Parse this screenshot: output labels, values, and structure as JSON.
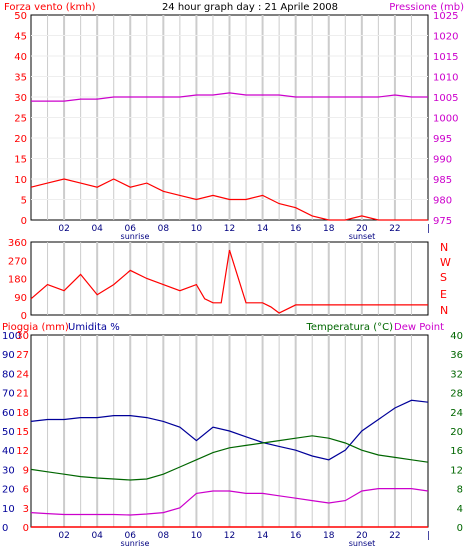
{
  "header": {
    "title": "24 hour graph day : 21 Aprile 2008",
    "left_label": "Forza vento (kmh)",
    "right_label": "Pressione (mb)"
  },
  "bottom_header": {
    "rain_label": "Pioggia (mm)",
    "humidity_label": "Umidita %",
    "temp_label": "Temperatura (°C)",
    "dewpoint_label": "Dew Point"
  },
  "direction_labels": [
    "N",
    "W",
    "S",
    "E",
    "N"
  ],
  "hour_labels": [
    "02",
    "04",
    "06",
    "08",
    "10",
    "12",
    "14",
    "16",
    "18",
    "20",
    "22"
  ],
  "sunrise_label": "sunrise",
  "sunset_label": "sunset",
  "colors": {
    "wind": "#ff0000",
    "gust": "#008000",
    "avg_wind": "#000080",
    "pressure": "#cc00cc",
    "direction": "#ff0000",
    "humidity": "#000099",
    "temperature": "#006600",
    "dewpoint": "#cc00cc",
    "rain": "#ff0000",
    "grid": "#cccccc"
  },
  "chart_data": [
    {
      "type": "line",
      "title": "24 hour graph day : 21 Aprile 2008",
      "xlabel": "",
      "ylabel": "Forza vento (kmh)",
      "y2label": "Pressione (mb)",
      "x_ticks": [
        "02",
        "04",
        "06",
        "08",
        "10",
        "12",
        "14",
        "16",
        "18",
        "20",
        "22"
      ],
      "ylim": [
        0,
        50
      ],
      "yticks": [
        0,
        5,
        10,
        15,
        20,
        25,
        30,
        35,
        40,
        45,
        50
      ],
      "y2lim": [
        975,
        1025
      ],
      "y2ticks": [
        975,
        980,
        985,
        990,
        995,
        1000,
        1005,
        1010,
        1015,
        1020,
        1025
      ],
      "series": [
        {
          "name": "Forza vento (kmh)",
          "axis": "left",
          "x": [
            0,
            1,
            2,
            3,
            4,
            5,
            6,
            7,
            8,
            9,
            10,
            11,
            12,
            13,
            14,
            15,
            16,
            17,
            18,
            19,
            20,
            21,
            22,
            23,
            24
          ],
          "values": [
            8,
            9,
            10,
            9,
            8,
            10,
            8,
            9,
            7,
            6,
            5,
            6,
            5,
            5,
            6,
            4,
            3,
            1,
            0,
            0,
            1,
            0,
            0,
            0,
            0
          ]
        },
        {
          "name": "Pressione (mb)",
          "axis": "right",
          "x": [
            0,
            1,
            2,
            3,
            4,
            5,
            6,
            7,
            8,
            9,
            10,
            11,
            12,
            13,
            14,
            15,
            16,
            17,
            18,
            19,
            20,
            21,
            22,
            23,
            24
          ],
          "values": [
            1004,
            1004,
            1004,
            1004.5,
            1004.5,
            1005,
            1005,
            1005,
            1005,
            1005,
            1005.5,
            1005.5,
            1006,
            1005.5,
            1005.5,
            1005.5,
            1005,
            1005,
            1005,
            1005,
            1005,
            1005,
            1005.5,
            1005,
            1005
          ]
        }
      ]
    },
    {
      "type": "line",
      "title": "",
      "ylabel": "",
      "ylim": [
        0,
        360
      ],
      "yticks": [
        0,
        45,
        90,
        135,
        180,
        225,
        270,
        315,
        360
      ],
      "series": [
        {
          "name": "",
          "x": [
            0,
            1,
            2,
            3,
            4,
            5,
            6,
            7,
            8,
            9,
            10,
            10.5,
            11,
            11.5,
            12,
            13,
            14,
            14.5,
            15,
            16,
            17,
            18,
            19,
            20,
            21,
            22,
            23,
            24
          ],
          "values": [
            80,
            150,
            120,
            200,
            100,
            150,
            220,
            180,
            150,
            120,
            150,
            80,
            60,
            60,
            320,
            60,
            60,
            40,
            10,
            50,
            50,
            50,
            50,
            50,
            50,
            50,
            50,
            50
          ]
        }
      ]
    },
    {
      "type": "line",
      "title": "",
      "ylabel": "Pioggia (mm)",
      "y2label": "Temperatura (°C)",
      "ylim": [
        0,
        30
      ],
      "yticks": [
        0,
        3,
        6,
        9,
        12,
        15,
        18,
        21,
        24,
        27,
        30
      ],
      "humidity_ticks": [
        0,
        10,
        20,
        30,
        40,
        50,
        60,
        70,
        80,
        90,
        100
      ],
      "y2lim": [
        0,
        40
      ],
      "y2ticks": [
        0,
        4,
        8,
        12,
        16,
        20,
        24,
        28,
        32,
        36,
        40
      ],
      "series": [
        {
          "name": "Umidita %",
          "axis": "humidity",
          "x": [
            0,
            1,
            2,
            3,
            4,
            5,
            6,
            7,
            8,
            9,
            10,
            11,
            12,
            13,
            14,
            15,
            16,
            17,
            18,
            19,
            20,
            21,
            22,
            23,
            24
          ],
          "values": [
            55,
            56,
            56,
            57,
            57,
            58,
            58,
            57,
            55,
            52,
            45,
            52,
            50,
            47,
            44,
            42,
            40,
            37,
            35,
            40,
            50,
            56,
            62,
            66,
            65
          ]
        },
        {
          "name": "Temperatura (°C)",
          "axis": "right",
          "x": [
            0,
            1,
            2,
            3,
            4,
            5,
            6,
            7,
            8,
            9,
            10,
            11,
            12,
            13,
            14,
            15,
            16,
            17,
            18,
            19,
            20,
            21,
            22,
            23,
            24
          ],
          "values": [
            12,
            11.5,
            11,
            10.5,
            10.2,
            10,
            9.8,
            10,
            11,
            12.5,
            14,
            15.5,
            16.5,
            17,
            17.5,
            18,
            18.5,
            19,
            18.5,
            17.5,
            16,
            15,
            14.5,
            14,
            13.5
          ]
        },
        {
          "name": "Dew Point",
          "axis": "right",
          "x": [
            0,
            1,
            2,
            3,
            4,
            5,
            6,
            7,
            8,
            9,
            10,
            11,
            12,
            13,
            14,
            15,
            16,
            17,
            18,
            19,
            20,
            21,
            22,
            23,
            24
          ],
          "values": [
            3,
            2.8,
            2.6,
            2.6,
            2.6,
            2.6,
            2.5,
            2.7,
            3,
            4,
            7,
            7.5,
            7.5,
            7,
            7,
            6.5,
            6,
            5.5,
            5,
            5.5,
            7.5,
            8,
            8,
            8,
            7.5
          ]
        },
        {
          "name": "Pioggia (mm)",
          "axis": "left",
          "x": [
            0,
            24
          ],
          "values": [
            0,
            0
          ]
        }
      ]
    }
  ]
}
